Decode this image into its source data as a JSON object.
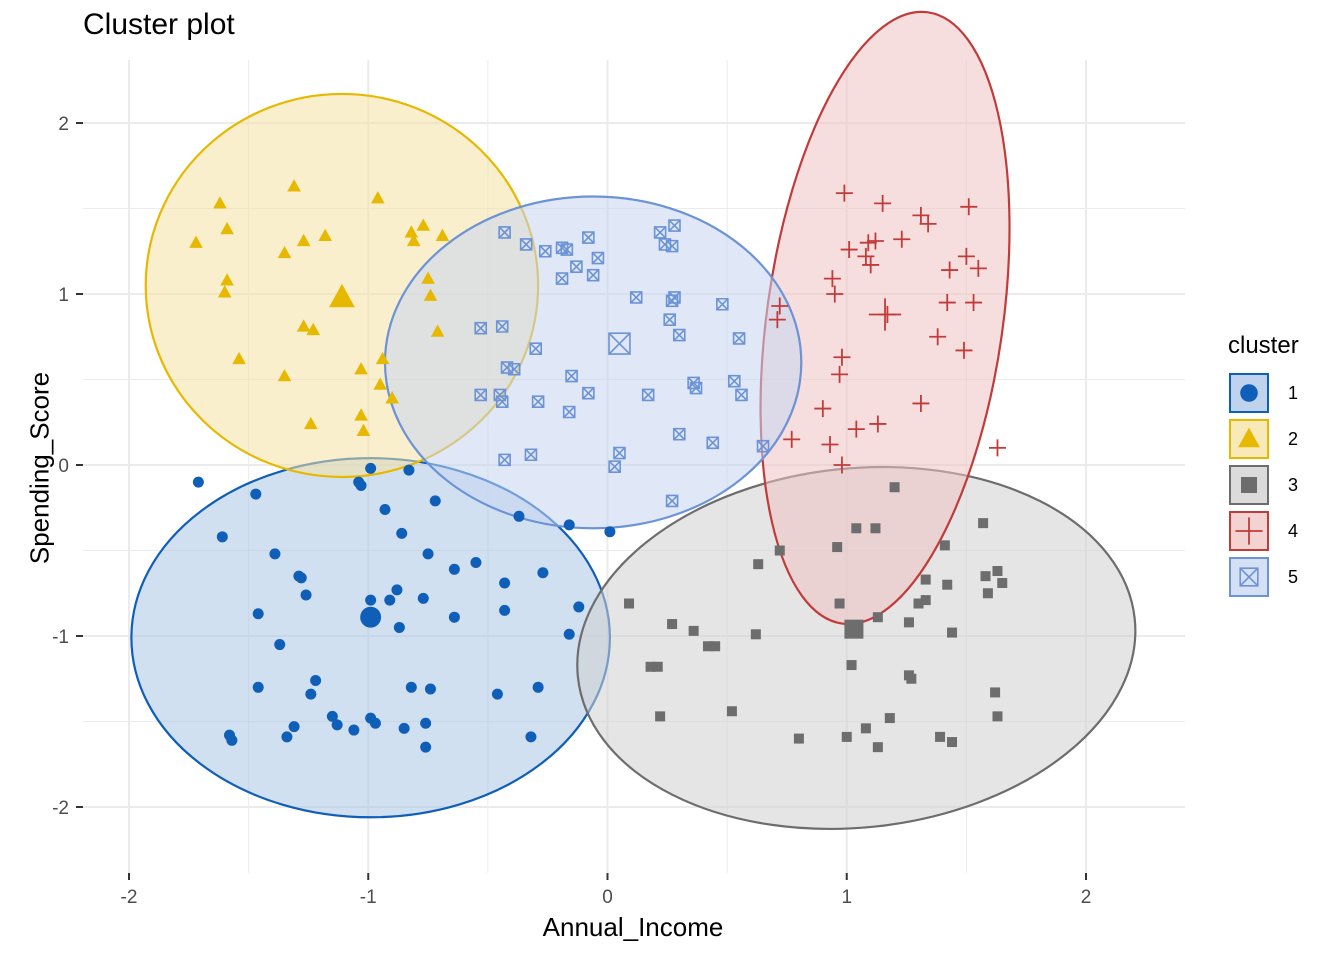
{
  "chart_data": {
    "type": "scatter",
    "title": "Cluster plot",
    "xlabel": "Annual_Income",
    "ylabel": "Spending_Score",
    "xlim": [
      -2.2,
      2.4
    ],
    "ylim": [
      -2.4,
      2.4
    ],
    "xticks": [
      -2,
      -1,
      0,
      1,
      2
    ],
    "yticks": [
      2,
      1,
      0,
      -1,
      -2
    ],
    "grid": true,
    "legend": {
      "title": "cluster",
      "position": "right"
    },
    "series": [
      {
        "name": "1",
        "shape": "circle",
        "color": "#0F5EB8",
        "fill": "#A9C6E6",
        "centroid": [
          -0.99,
          -0.89
        ],
        "ellipse": {
          "cx": -0.99,
          "cy": -1.01,
          "rx": 1.0,
          "ry": 1.05,
          "angle": 0
        },
        "points": [
          [
            -1.71,
            -0.1
          ],
          [
            -1.61,
            -0.42
          ],
          [
            -1.58,
            -1.58
          ],
          [
            -1.57,
            -1.61
          ],
          [
            -1.47,
            -0.17
          ],
          [
            -1.46,
            -0.87
          ],
          [
            -1.46,
            -1.3
          ],
          [
            -1.39,
            -0.52
          ],
          [
            -1.37,
            -1.05
          ],
          [
            -1.34,
            -1.59
          ],
          [
            -1.31,
            -1.53
          ],
          [
            -1.29,
            -0.65
          ],
          [
            -1.28,
            -0.66
          ],
          [
            -1.26,
            -0.76
          ],
          [
            -1.24,
            -1.34
          ],
          [
            -1.22,
            -1.26
          ],
          [
            -1.15,
            -1.47
          ],
          [
            -1.13,
            -1.52
          ],
          [
            -1.06,
            -1.55
          ],
          [
            -1.04,
            -0.1
          ],
          [
            -1.03,
            -0.12
          ],
          [
            -0.99,
            -0.79
          ],
          [
            -0.99,
            -0.02
          ],
          [
            -0.99,
            -1.48
          ],
          [
            -0.97,
            -1.51
          ],
          [
            -0.93,
            -0.26
          ],
          [
            -0.91,
            -0.79
          ],
          [
            -0.88,
            -0.73
          ],
          [
            -0.87,
            -0.95
          ],
          [
            -0.86,
            -0.4
          ],
          [
            -0.85,
            -1.54
          ],
          [
            -0.83,
            -0.03
          ],
          [
            -0.82,
            -1.3
          ],
          [
            -0.77,
            -0.78
          ],
          [
            -0.76,
            -1.51
          ],
          [
            -0.76,
            -1.65
          ],
          [
            -0.75,
            -0.52
          ],
          [
            -0.74,
            -1.31
          ],
          [
            -0.72,
            -0.21
          ],
          [
            -0.64,
            -0.61
          ],
          [
            -0.64,
            -0.89
          ],
          [
            -0.55,
            -0.57
          ],
          [
            -0.46,
            -1.34
          ],
          [
            -0.43,
            -0.69
          ],
          [
            -0.43,
            -0.85
          ],
          [
            -0.37,
            -0.3
          ],
          [
            -0.32,
            -1.59
          ],
          [
            -0.29,
            -1.3
          ],
          [
            -0.27,
            -0.63
          ],
          [
            -0.16,
            -0.35
          ],
          [
            -0.16,
            -0.99
          ],
          [
            -0.12,
            -0.83
          ],
          [
            0.01,
            -0.39
          ]
        ]
      },
      {
        "name": "2",
        "shape": "triangle",
        "color": "#E7B800",
        "fill": "#F5E2A2",
        "centroid": [
          -1.11,
          0.98
        ],
        "ellipse": {
          "cx": -1.11,
          "cy": 1.05,
          "rx": 0.82,
          "ry": 1.12,
          "angle": 0
        },
        "points": [
          [
            -1.72,
            1.3
          ],
          [
            -1.62,
            1.53
          ],
          [
            -1.59,
            1.38
          ],
          [
            -1.59,
            1.08
          ],
          [
            -1.6,
            1.01
          ],
          [
            -1.54,
            0.62
          ],
          [
            -1.35,
            1.24
          ],
          [
            -1.35,
            0.52
          ],
          [
            -1.31,
            1.63
          ],
          [
            -1.27,
            1.31
          ],
          [
            -1.27,
            0.81
          ],
          [
            -1.23,
            0.79
          ],
          [
            -1.18,
            1.34
          ],
          [
            -1.24,
            0.24
          ],
          [
            -1.03,
            0.29
          ],
          [
            -1.02,
            0.2
          ],
          [
            -1.03,
            0.56
          ],
          [
            -0.96,
            1.56
          ],
          [
            -0.95,
            0.47
          ],
          [
            -0.94,
            0.62
          ],
          [
            -0.9,
            0.39
          ],
          [
            -0.82,
            1.36
          ],
          [
            -0.81,
            1.31
          ],
          [
            -0.77,
            1.4
          ],
          [
            -0.75,
            1.09
          ],
          [
            -0.74,
            0.99
          ],
          [
            -0.71,
            0.78
          ],
          [
            -0.69,
            1.34
          ]
        ]
      },
      {
        "name": "3",
        "shape": "square",
        "color": "#6D6D6D",
        "fill": "#CFCFCF",
        "centroid": [
          1.03,
          -0.96
        ],
        "ellipse": {
          "cx": 1.04,
          "cy": -1.07,
          "rx": 1.17,
          "ry": 1.05,
          "angle": 6
        },
        "points": [
          [
            0.09,
            -0.81
          ],
          [
            0.18,
            -1.18
          ],
          [
            0.21,
            -1.18
          ],
          [
            0.22,
            -1.47
          ],
          [
            0.27,
            -0.93
          ],
          [
            0.36,
            -0.97
          ],
          [
            0.42,
            -1.06
          ],
          [
            0.45,
            -1.06
          ],
          [
            0.52,
            -1.44
          ],
          [
            0.62,
            -0.99
          ],
          [
            0.63,
            -0.58
          ],
          [
            0.72,
            -0.5
          ],
          [
            0.8,
            -1.6
          ],
          [
            0.96,
            -0.48
          ],
          [
            0.97,
            -0.81
          ],
          [
            1.0,
            -1.59
          ],
          [
            1.02,
            -1.17
          ],
          [
            1.04,
            -0.37
          ],
          [
            1.08,
            -1.54
          ],
          [
            1.12,
            -0.37
          ],
          [
            1.13,
            -0.89
          ],
          [
            1.13,
            -1.65
          ],
          [
            1.18,
            -1.48
          ],
          [
            1.2,
            -0.13
          ],
          [
            1.26,
            -0.92
          ],
          [
            1.26,
            -1.23
          ],
          [
            1.27,
            -1.25
          ],
          [
            1.3,
            -0.81
          ],
          [
            1.33,
            -0.67
          ],
          [
            1.33,
            -0.79
          ],
          [
            1.39,
            -1.59
          ],
          [
            1.41,
            -0.47
          ],
          [
            1.42,
            -0.7
          ],
          [
            1.44,
            -0.98
          ],
          [
            1.44,
            -1.62
          ],
          [
            1.57,
            -0.34
          ],
          [
            1.58,
            -0.65
          ],
          [
            1.59,
            -0.75
          ],
          [
            1.62,
            -1.33
          ],
          [
            1.63,
            -1.47
          ],
          [
            1.63,
            -0.62
          ],
          [
            1.65,
            -0.69
          ]
        ]
      },
      {
        "name": "4",
        "shape": "cross",
        "color": "#C23B3B",
        "fill": "#EFC3C3",
        "centroid": [
          1.16,
          0.88
        ],
        "ellipse": {
          "cx": 1.16,
          "cy": 0.86,
          "rx": 1.29,
          "ry": 0.69,
          "angle": 82
        },
        "points": [
          [
            0.71,
            0.85
          ],
          [
            0.72,
            0.93
          ],
          [
            0.77,
            0.15
          ],
          [
            0.9,
            0.33
          ],
          [
            0.93,
            0.12
          ],
          [
            0.94,
            1.09
          ],
          [
            0.95,
            1.0
          ],
          [
            0.97,
            0.53
          ],
          [
            0.98,
            0.0
          ],
          [
            0.98,
            0.63
          ],
          [
            0.99,
            1.59
          ],
          [
            1.01,
            1.26
          ],
          [
            1.04,
            0.21
          ],
          [
            1.08,
            1.22
          ],
          [
            1.09,
            1.3
          ],
          [
            1.1,
            1.17
          ],
          [
            1.12,
            1.31
          ],
          [
            1.13,
            0.24
          ],
          [
            1.15,
            1.53
          ],
          [
            1.17,
            0.88
          ],
          [
            1.23,
            1.32
          ],
          [
            1.31,
            0.36
          ],
          [
            1.31,
            1.46
          ],
          [
            1.34,
            1.41
          ],
          [
            1.38,
            0.75
          ],
          [
            1.42,
            0.95
          ],
          [
            1.43,
            1.14
          ],
          [
            1.49,
            0.67
          ],
          [
            1.5,
            1.22
          ],
          [
            1.51,
            1.51
          ],
          [
            1.53,
            0.95
          ],
          [
            1.55,
            1.15
          ],
          [
            1.63,
            0.1
          ]
        ]
      },
      {
        "name": "5",
        "shape": "square-x",
        "color": "#6B93D6",
        "fill": "#C7D6F0",
        "centroid": [
          0.05,
          0.71
        ],
        "ellipse": {
          "cx": -0.06,
          "cy": 0.6,
          "rx": 0.87,
          "ry": 0.97,
          "angle": 0
        },
        "points": [
          [
            -0.45,
            0.41
          ],
          [
            -0.44,
            0.37
          ],
          [
            -0.43,
            0.03
          ],
          [
            -0.42,
            0.57
          ],
          [
            -0.39,
            0.56
          ],
          [
            -0.43,
            1.36
          ],
          [
            -0.34,
            1.29
          ],
          [
            -0.3,
            0.68
          ],
          [
            -0.29,
            0.37
          ],
          [
            -0.26,
            1.25
          ],
          [
            -0.19,
            1.27
          ],
          [
            -0.19,
            1.09
          ],
          [
            -0.17,
            1.26
          ],
          [
            -0.16,
            0.31
          ],
          [
            -0.15,
            0.52
          ],
          [
            -0.13,
            1.16
          ],
          [
            -0.08,
            1.33
          ],
          [
            -0.08,
            0.42
          ],
          [
            -0.06,
            1.11
          ],
          [
            -0.04,
            1.21
          ],
          [
            0.05,
            0.07
          ],
          [
            0.12,
            0.98
          ],
          [
            0.17,
            0.41
          ],
          [
            0.22,
            1.36
          ],
          [
            0.24,
            1.29
          ],
          [
            0.26,
            0.85
          ],
          [
            0.27,
            1.28
          ],
          [
            0.28,
            0.98
          ],
          [
            0.28,
            1.4
          ],
          [
            0.27,
            0.96
          ],
          [
            0.3,
            0.76
          ],
          [
            0.3,
            0.18
          ],
          [
            0.36,
            0.48
          ],
          [
            0.37,
            0.45
          ],
          [
            0.44,
            0.13
          ],
          [
            0.48,
            0.94
          ],
          [
            0.53,
            0.49
          ],
          [
            0.55,
            0.74
          ],
          [
            0.56,
            0.41
          ],
          [
            0.65,
            0.11
          ],
          [
            0.27,
            -0.21
          ],
          [
            0.03,
            -0.01
          ],
          [
            -0.32,
            0.06
          ],
          [
            -0.44,
            0.81
          ],
          [
            -0.53,
            0.41
          ],
          [
            -0.53,
            0.8
          ]
        ]
      }
    ]
  }
}
